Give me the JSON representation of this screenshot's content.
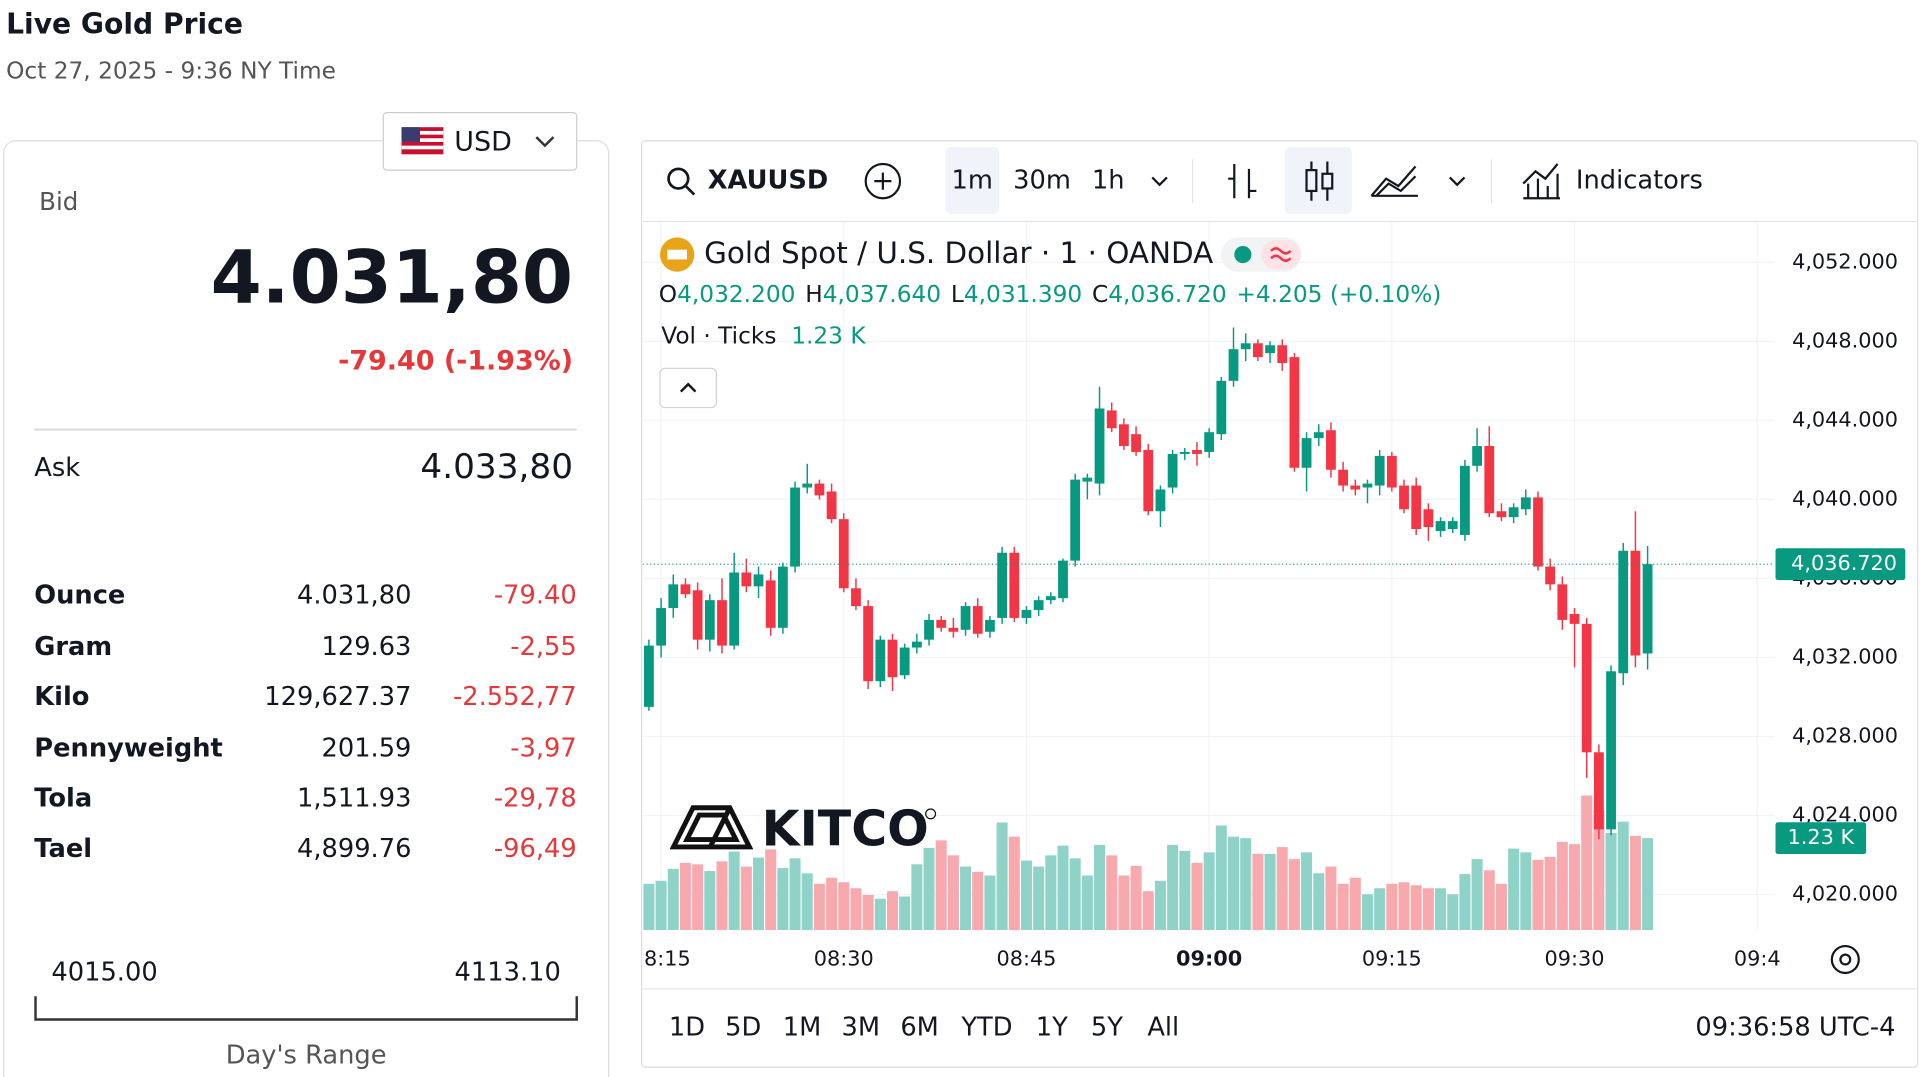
{
  "header": {
    "title": "Live Gold Price",
    "subtitle": "Oct 27, 2025 - 9:36 NY Time"
  },
  "currency": "USD",
  "quote": {
    "bid_label": "Bid",
    "bid": "4.031,80",
    "change": "-79.40 (-1.93%)",
    "ask_label": "Ask",
    "ask": "4.033,80"
  },
  "units": {
    "rows": [
      [
        "Ounce",
        "4.031,80",
        "-79.40"
      ],
      [
        "Gram",
        "129.63",
        "-2,55"
      ],
      [
        "Kilo",
        "129,627.37",
        "-2.552,77"
      ],
      [
        "Pennyweight",
        "201.59",
        "-3,97"
      ],
      [
        "Tola",
        "1,511.93",
        "-29,78"
      ],
      [
        "Tael",
        "4,899.76",
        "-96,49"
      ]
    ]
  },
  "range": {
    "low": "4015.00",
    "high": "4113.10",
    "label": "Day's Range"
  },
  "toolbar": {
    "symbol": "XAUUSD",
    "intervals": [
      "1m",
      "30m",
      "1h"
    ],
    "indicators": "Indicators"
  },
  "chart_data": {
    "type": "candlestick",
    "title": "Gold Spot / U.S. Dollar · 1 · OANDA",
    "legend": [
      {
        "key": "O",
        "value": "4,032.200"
      },
      {
        "key": "H",
        "value": "4,037.640"
      },
      {
        "key": "L",
        "value": "4,031.390"
      },
      {
        "key": "C",
        "value": "4,036.720"
      }
    ],
    "legend_change": "+4.205 (+0.10%)",
    "volume_title": "Vol · Ticks",
    "last_volume_label": "1.23 K",
    "last_price_label": "4,036.720",
    "logo": "KITCO",
    "up_color": "#089981",
    "down_color": "#f23645",
    "grid": true,
    "x": [
      "08:14",
      "08:15",
      "08:16",
      "08:17",
      "08:18",
      "08:19",
      "08:20",
      "08:21",
      "08:22",
      "08:23",
      "08:24",
      "08:25",
      "08:26",
      "08:27",
      "08:28",
      "08:29",
      "08:30",
      "08:31",
      "08:32",
      "08:33",
      "08:34",
      "08:35",
      "08:36",
      "08:37",
      "08:38",
      "08:39",
      "08:40",
      "08:41",
      "08:42",
      "08:43",
      "08:44",
      "08:45",
      "08:46",
      "08:47",
      "08:48",
      "08:49",
      "08:50",
      "08:51",
      "08:52",
      "08:53",
      "08:54",
      "08:55",
      "08:56",
      "08:57",
      "08:58",
      "08:59",
      "09:00",
      "09:01",
      "09:02",
      "09:03",
      "09:04",
      "09:05",
      "09:06",
      "09:07",
      "09:08",
      "09:09",
      "09:10",
      "09:11",
      "09:12",
      "09:13",
      "09:14",
      "09:15",
      "09:16",
      "09:17",
      "09:18",
      "09:19",
      "09:20",
      "09:21",
      "09:22",
      "09:23",
      "09:24",
      "09:25",
      "09:26",
      "09:27",
      "09:28",
      "09:29",
      "09:30",
      "09:31",
      "09:32",
      "09:33",
      "09:34",
      "09:35",
      "09:36"
    ],
    "open": [
      4029.5,
      4032.6,
      4034.5,
      4035.7,
      4035.4,
      4032.9,
      4034.9,
      4032.6,
      4036.3,
      4035.6,
      4035.9,
      4033.5,
      4036.6,
      4040.6,
      4040.8,
      4040.4,
      4039.0,
      4035.5,
      4034.6,
      4030.8,
      4032.9,
      4031.1,
      4032.5,
      4032.9,
      4033.9,
      4033.5,
      4033.4,
      4034.6,
      4033.3,
      4034.0,
      4037.3,
      4034.0,
      4034.4,
      4034.9,
      4035.0,
      4036.9,
      4040.9,
      4040.8,
      4044.5,
      4043.8,
      4043.3,
      4042.5,
      4039.4,
      4040.6,
      4042.3,
      4042.5,
      4042.4,
      4043.3,
      4046.0,
      4047.6,
      4047.9,
      4047.4,
      4047.8,
      4047.2,
      4041.6,
      4043.1,
      4043.5,
      4041.5,
      4040.7,
      4040.6,
      4040.7,
      4042.2,
      4040.7,
      4040.7,
      4039.5,
      4038.4,
      4038.5,
      4038.2,
      4041.7,
      4042.7,
      4039.4,
      4039.1,
      4039.5,
      4040.1,
      4036.6,
      4035.7,
      4034.2,
      4033.7,
      4027.2,
      4023.3,
      4031.2,
      4037.4,
      4032.2
    ],
    "high": [
      4032.9,
      4035.0,
      4036.2,
      4036.0,
      4035.8,
      4035.2,
      4036.0,
      4037.3,
      4037.0,
      4036.6,
      4036.4,
      4036.8,
      4040.9,
      4041.8,
      4041.0,
      4040.8,
      4039.3,
      4036.0,
      4034.9,
      4033.1,
      4033.2,
      4032.7,
      4033.2,
      4034.2,
      4034.1,
      4034.0,
      4034.8,
      4035.0,
      4034.1,
      4037.6,
      4037.6,
      4034.6,
      4035.1,
      4035.3,
      4037.0,
      4041.3,
      4041.3,
      4045.7,
      4044.9,
      4044.1,
      4043.7,
      4042.8,
      4040.7,
      4042.5,
      4042.6,
      4042.9,
      4043.6,
      4046.2,
      4048.7,
      4048.4,
      4048.1,
      4048.0,
      4048.1,
      4047.4,
      4043.4,
      4043.8,
      4043.9,
      4041.9,
      4041.0,
      4041.0,
      4042.5,
      4042.4,
      4041.0,
      4041.1,
      4039.8,
      4039.1,
      4039.1,
      4042.0,
      4043.6,
      4043.7,
      4039.8,
      4039.8,
      4040.5,
      4040.4,
      4037.0,
      4036.1,
      4034.5,
      4034.0,
      4027.6,
      4031.6,
      4037.8,
      4039.4,
      4037.64
    ],
    "low": [
      4029.3,
      4032.0,
      4034.0,
      4035.0,
      4032.4,
      4032.3,
      4032.2,
      4032.4,
      4035.3,
      4035.0,
      4033.1,
      4033.2,
      4036.3,
      4040.3,
      4040.0,
      4038.8,
      4035.3,
      4034.4,
      4030.4,
      4030.5,
      4030.3,
      4030.9,
      4032.2,
      4032.6,
      4033.3,
      4033.0,
      4033.1,
      4033.0,
      4033.0,
      4033.7,
      4033.8,
      4033.7,
      4034.1,
      4034.7,
      4034.8,
      4036.6,
      4040.0,
      4040.2,
      4043.4,
      4042.5,
      4042.2,
      4039.2,
      4038.6,
      4040.3,
      4042.0,
      4041.7,
      4042.1,
      4043.0,
      4045.7,
      4047.0,
      4047.0,
      4046.9,
      4046.5,
      4041.4,
      4040.4,
      4042.7,
      4041.1,
      4040.4,
      4040.2,
      4039.8,
      4040.2,
      4040.4,
      4039.3,
      4038.2,
      4037.9,
      4038.1,
      4038.3,
      4037.9,
      4041.4,
      4039.1,
      4038.9,
      4038.8,
      4039.2,
      4036.4,
      4035.4,
      4033.4,
      4031.5,
      4025.9,
      4022.8,
      4023.0,
      4030.6,
      4031.5,
      4031.39
    ],
    "close": [
      4032.6,
      4034.5,
      4035.7,
      4035.2,
      4032.9,
      4034.9,
      4032.6,
      4036.3,
      4035.6,
      4036.2,
      4033.5,
      4036.6,
      4040.6,
      4040.8,
      4040.2,
      4039.0,
      4035.5,
      4034.6,
      4030.8,
      4032.9,
      4031.0,
      4032.5,
      4032.8,
      4033.9,
      4033.5,
      4033.3,
      4034.6,
      4033.2,
      4033.9,
      4037.3,
      4034.0,
      4034.4,
      4034.9,
      4035.1,
      4036.9,
      4041.0,
      4041.1,
      4044.6,
      4043.6,
      4042.7,
      4042.4,
      4039.4,
      4040.5,
      4042.3,
      4042.4,
      4042.3,
      4043.4,
      4046.0,
      4047.6,
      4047.9,
      4047.2,
      4047.8,
      4046.9,
      4041.6,
      4043.1,
      4043.4,
      4041.5,
      4040.7,
      4040.5,
      4040.8,
      4042.2,
      4040.6,
      4039.5,
      4038.5,
      4038.6,
      4038.9,
      4038.9,
      4041.7,
      4042.7,
      4039.3,
      4039.1,
      4039.6,
      4040.1,
      4036.6,
      4035.7,
      4033.9,
      4033.7,
      4027.2,
      4023.3,
      4031.3,
      4037.4,
      4032.1,
      4036.72
    ],
    "volume": [
      620,
      660,
      820,
      900,
      880,
      790,
      920,
      1050,
      850,
      970,
      1080,
      830,
      960,
      760,
      620,
      700,
      640,
      560,
      470,
      420,
      520,
      450,
      880,
      1100,
      1200,
      1000,
      850,
      780,
      730,
      1440,
      1250,
      930,
      850,
      1000,
      1130,
      960,
      730,
      1140,
      1000,
      730,
      860,
      520,
      660,
      1140,
      1060,
      900,
      1040,
      1400,
      1250,
      1230,
      1020,
      1020,
      1110,
      950,
      1040,
      760,
      850,
      620,
      700,
      480,
      560,
      620,
      640,
      600,
      560,
      560,
      480,
      750,
      950,
      800,
      620,
      1090,
      1040,
      940,
      980,
      1180,
      1150,
      1800,
      1600,
      1300,
      1450,
      1260,
      1230
    ],
    "ylim": [
      4018.2,
      4054
    ],
    "yticks": [
      {
        "value": 4020,
        "label": "4,020.000"
      },
      {
        "value": 4024,
        "label": "4,024.000"
      },
      {
        "value": 4028,
        "label": "4,028.000"
      },
      {
        "value": 4032,
        "label": "4,032.000"
      },
      {
        "value": 4036,
        "label": "4,036.000"
      },
      {
        "value": 4040,
        "label": "4,040.000"
      },
      {
        "value": 4044,
        "label": "4,044.000"
      },
      {
        "value": 4048,
        "label": "4,048.000"
      },
      {
        "value": 4052,
        "label": "4,052.000"
      }
    ],
    "xlim": [
      "08:13",
      "09:46"
    ],
    "xticks": [
      {
        "value": "08:15",
        "label": "8:15"
      },
      "08:30",
      "08:45",
      "09:00",
      "09:15",
      "09:30",
      {
        "value": "09:45",
        "label": "09:4"
      }
    ]
  },
  "footer": {
    "ranges": [
      "1D",
      "5D",
      "1M",
      "3M",
      "6M",
      "YTD",
      "1Y",
      "5Y",
      "All"
    ],
    "time": "09:36:58 UTC-4"
  }
}
